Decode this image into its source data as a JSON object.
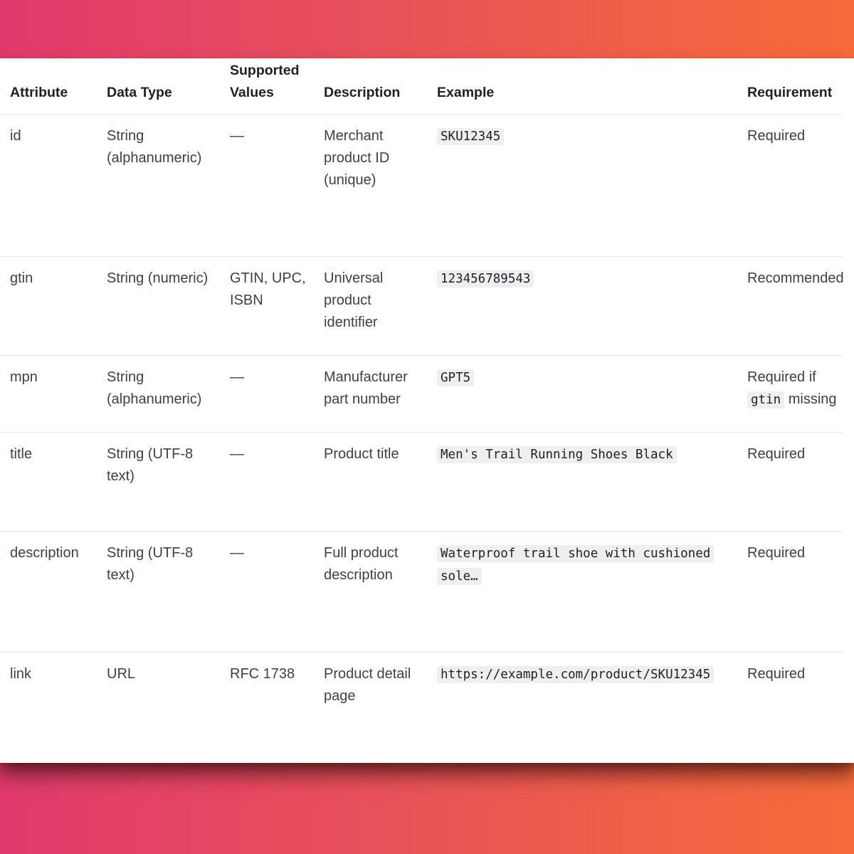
{
  "table": {
    "headers": {
      "attribute": "Attribute",
      "data_type": "Data Type",
      "supported_values_line1": "Supported",
      "supported_values_line2": "Values",
      "description": "Description",
      "example": "Example",
      "requirement": "Requirement"
    },
    "rows": [
      {
        "attribute": "id",
        "data_type": "String (alphanumeric)",
        "supported_values": "—",
        "description": "Merchant product ID (unique)",
        "example": "SKU12345",
        "requirement": "Required"
      },
      {
        "attribute": "gtin",
        "data_type": "String (numeric)",
        "supported_values": "GTIN, UPC, ISBN",
        "description": "Universal product identifier",
        "example": "123456789543",
        "requirement": "Recommended"
      },
      {
        "attribute": "mpn",
        "data_type": "String (alphanumeric)",
        "supported_values": "—",
        "description": "Manufacturer part number",
        "example": "GPT5",
        "requirement_prefix": "Required if",
        "requirement_code": "gtin",
        "requirement_suffix": "missing"
      },
      {
        "attribute": "title",
        "data_type": "String (UTF-8 text)",
        "supported_values": "—",
        "description": "Product title",
        "example": "Men's Trail Running Shoes Black",
        "requirement": "Required"
      },
      {
        "attribute": "description",
        "data_type": "String (UTF-8 text)",
        "supported_values": "—",
        "description": "Full product description",
        "example": "Waterproof trail shoe with cushioned sole…",
        "requirement": "Required"
      },
      {
        "attribute": "link",
        "data_type": "URL",
        "supported_values": "RFC 1738",
        "description": "Product detail page",
        "example": "https://example.com/product/SKU12345",
        "requirement": "Required"
      }
    ]
  }
}
